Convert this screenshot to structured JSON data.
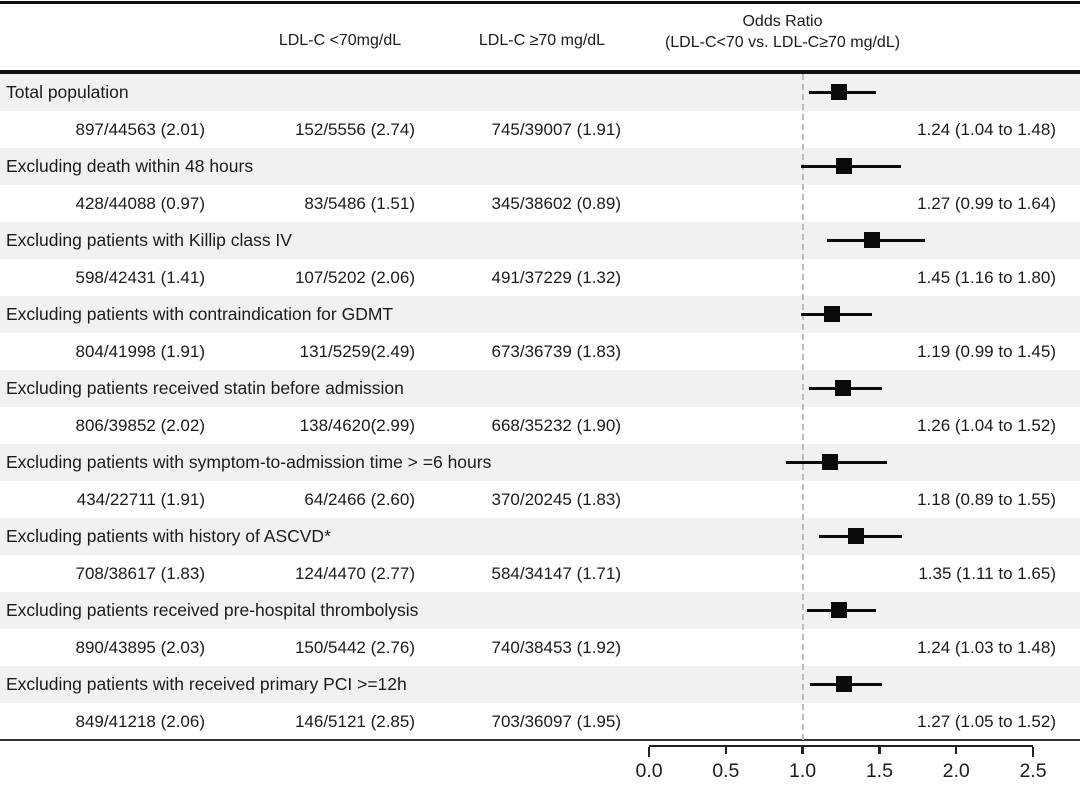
{
  "figure": {
    "header": {
      "col_lt70": "LDL-C <70mg/dL",
      "col_ge70": "LDL-C ≥70 mg/dL",
      "or_title": "Odds Ratio",
      "or_subtitle": "(LDL-C<70 vs. LDL-C≥70 mg/dL)"
    },
    "rows": [
      {
        "label": "Total population",
        "total": "897/44563 (2.01)",
        "lt70": "152/5556 (2.74)",
        "ge70": "745/39007 (1.91)",
        "or_text": "1.24 (1.04 to 1.48)",
        "or": 1.24,
        "ci_low": 1.04,
        "ci_high": 1.48
      },
      {
        "label": "Excluding death within 48 hours",
        "total": "428/44088 (0.97)",
        "lt70": "83/5486 (1.51)",
        "ge70": "345/38602 (0.89)",
        "or_text": "1.27 (0.99 to 1.64)",
        "or": 1.27,
        "ci_low": 0.99,
        "ci_high": 1.64
      },
      {
        "label": "Excluding patients with Killip class IV",
        "total": "598/42431 (1.41)",
        "lt70": "107/5202 (2.06)",
        "ge70": "491/37229 (1.32)",
        "or_text": "1.45 (1.16 to 1.80)",
        "or": 1.45,
        "ci_low": 1.16,
        "ci_high": 1.8
      },
      {
        "label": "Excluding patients with contraindication for GDMT",
        "total": "804/41998 (1.91)",
        "lt70": "131/5259(2.49)",
        "ge70": "673/36739 (1.83)",
        "or_text": "1.19 (0.99 to 1.45)",
        "or": 1.19,
        "ci_low": 0.99,
        "ci_high": 1.45
      },
      {
        "label": "Excluding patients received statin before admission",
        "total": "806/39852 (2.02)",
        "lt70": "138/4620(2.99)",
        "ge70": "668/35232 (1.90)",
        "or_text": "1.26 (1.04 to 1.52)",
        "or": 1.26,
        "ci_low": 1.04,
        "ci_high": 1.52
      },
      {
        "label": "Excluding patients with symptom-to-admission time > =6 hours",
        "total": "434/22711 (1.91)",
        "lt70": "64/2466 (2.60)",
        "ge70": "370/20245 (1.83)",
        "or_text": "1.18 (0.89 to 1.55)",
        "or": 1.18,
        "ci_low": 0.89,
        "ci_high": 1.55
      },
      {
        "label": "Excluding patients with history of ASCVD*",
        "total": "708/38617 (1.83)",
        "lt70": "124/4470 (2.77)",
        "ge70": "584/34147 (1.71)",
        "or_text": "1.35 (1.11 to 1.65)",
        "or": 1.35,
        "ci_low": 1.11,
        "ci_high": 1.65
      },
      {
        "label": "Excluding patients received pre-hospital thrombolysis",
        "total": "890/43895 (2.03)",
        "lt70": "150/5442 (2.76)",
        "ge70": "740/38453 (1.92)",
        "or_text": "1.24 (1.03 to 1.48)",
        "or": 1.24,
        "ci_low": 1.03,
        "ci_high": 1.48
      },
      {
        "label": "Excluding patients with received primary PCI >=12h",
        "total": "849/41218 (2.06)",
        "lt70": "146/5121 (2.85)",
        "ge70": "703/36097 (1.95)",
        "or_text": "1.27 (1.05 to 1.52)",
        "or": 1.27,
        "ci_low": 1.05,
        "ci_high": 1.52
      }
    ],
    "axis": {
      "range": [
        0.0,
        2.5
      ],
      "ticks": [
        0.0,
        0.5,
        1.0,
        1.5,
        2.0,
        2.5
      ],
      "tick_labels": [
        "0.0",
        "0.5",
        "1.0",
        "1.5",
        "2.0",
        "2.5"
      ],
      "ref_line": 1.0
    }
  },
  "chart_data": {
    "type": "scatter",
    "variant": "forest-plot",
    "title": "Odds Ratio (LDL-C<70 vs. LDL-C≥70 mg/dL)",
    "categories": [
      "Total population",
      "Excluding death within 48 hours",
      "Excluding patients with Killip class IV",
      "Excluding patients with contraindication for GDMT",
      "Excluding patients received statin before admission",
      "Excluding patients with symptom-to-admission time > =6 hours",
      "Excluding patients with history of ASCVD*",
      "Excluding patients received pre-hospital thrombolysis",
      "Excluding patients with received primary PCI >=12h"
    ],
    "series": [
      {
        "name": "Odds Ratio",
        "values": [
          1.24,
          1.27,
          1.45,
          1.19,
          1.26,
          1.18,
          1.35,
          1.24,
          1.27
        ]
      },
      {
        "name": "CI lower",
        "values": [
          1.04,
          0.99,
          1.16,
          0.99,
          1.04,
          0.89,
          1.11,
          1.03,
          1.05
        ]
      },
      {
        "name": "CI upper",
        "values": [
          1.48,
          1.64,
          1.8,
          1.45,
          1.52,
          1.55,
          1.65,
          1.48,
          1.52
        ]
      }
    ],
    "xlim": [
      0.0,
      2.5
    ],
    "x_ticks": [
      0.0,
      0.5,
      1.0,
      1.5,
      2.0,
      2.5
    ],
    "reference_line": 1.0,
    "grid": false,
    "legend": "none",
    "marker": "filled-square-with-horizontal-CI"
  },
  "colors": {
    "band": "#f1f1f1",
    "marker": "#0a0a0a",
    "rule": "#111111",
    "reference_line": "#bdbdbd",
    "text": "#1b1b1b"
  }
}
